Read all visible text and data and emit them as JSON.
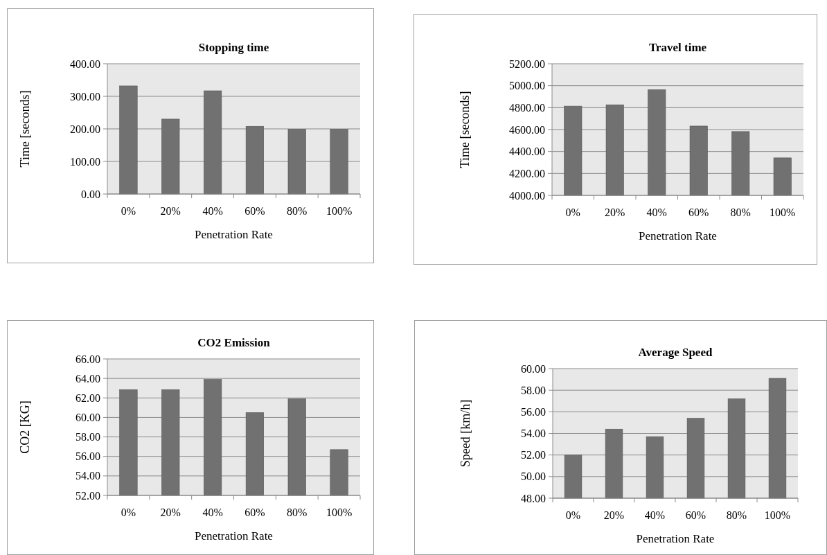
{
  "chart_data": [
    {
      "type": "bar",
      "title": "Stopping time",
      "xlabel": "Penetration Rate",
      "ylabel": "Time [seconds]",
      "categories": [
        "0%",
        "20%",
        "40%",
        "60%",
        "80%",
        "100%"
      ],
      "values": [
        332,
        230,
        317,
        208,
        199,
        199
      ],
      "color": "#717171",
      "ylim": [
        0,
        400
      ],
      "yticks": [
        {
          "value": 0,
          "label": "0.00"
        },
        {
          "value": 100,
          "label": "100.00"
        },
        {
          "value": 200,
          "label": "200.00"
        },
        {
          "value": 300,
          "label": "300.00"
        },
        {
          "value": 400,
          "label": "400.00"
        }
      ],
      "grid": "y"
    },
    {
      "type": "bar",
      "title": "Travel time",
      "xlabel": "Penetration Rate",
      "ylabel": "Time [seconds]",
      "categories": [
        "0%",
        "20%",
        "40%",
        "60%",
        "80%",
        "100%"
      ],
      "values": [
        4814,
        4826,
        4964,
        4632,
        4582,
        4342
      ],
      "color": "#717171",
      "ylim": [
        4000,
        5200
      ],
      "yticks": [
        {
          "value": 4000,
          "label": "4000.00"
        },
        {
          "value": 4200,
          "label": "4200.00"
        },
        {
          "value": 4400,
          "label": "4400.00"
        },
        {
          "value": 4600,
          "label": "4600.00"
        },
        {
          "value": 4800,
          "label": "4800.00"
        },
        {
          "value": 5000,
          "label": "5000.00"
        },
        {
          "value": 5200,
          "label": "5200.00"
        }
      ],
      "grid": "y"
    },
    {
      "type": "bar",
      "title": "CO2 Emission",
      "xlabel": "Penetration Rate",
      "ylabel": "CO2 [KG]",
      "categories": [
        "0%",
        "20%",
        "40%",
        "60%",
        "80%",
        "100%"
      ],
      "values": [
        62.85,
        62.85,
        63.9,
        60.5,
        61.9,
        56.7
      ],
      "color": "#717171",
      "ylim": [
        52,
        66
      ],
      "yticks": [
        {
          "value": 52,
          "label": "52.00"
        },
        {
          "value": 54,
          "label": "54.00"
        },
        {
          "value": 56,
          "label": "56.00"
        },
        {
          "value": 58,
          "label": "58.00"
        },
        {
          "value": 60,
          "label": "60.00"
        },
        {
          "value": 62,
          "label": "62.00"
        },
        {
          "value": 64,
          "label": "64.00"
        },
        {
          "value": 66,
          "label": "66.00"
        }
      ],
      "grid": "y"
    },
    {
      "type": "bar",
      "title": "Average Speed",
      "xlabel": "Penetration Rate",
      "ylabel": "Speed [km/h]",
      "categories": [
        "0%",
        "20%",
        "40%",
        "60%",
        "80%",
        "100%"
      ],
      "values": [
        52.0,
        54.4,
        53.7,
        55.4,
        57.2,
        59.1
      ],
      "color": "#717171",
      "ylim": [
        48,
        60
      ],
      "yticks": [
        {
          "value": 48,
          "label": "48.00"
        },
        {
          "value": 50,
          "label": "50.00"
        },
        {
          "value": 52,
          "label": "52.00"
        },
        {
          "value": 54,
          "label": "54.00"
        },
        {
          "value": 56,
          "label": "56.00"
        },
        {
          "value": 58,
          "label": "58.00"
        },
        {
          "value": 60,
          "label": "60.00"
        }
      ],
      "grid": "y"
    }
  ]
}
